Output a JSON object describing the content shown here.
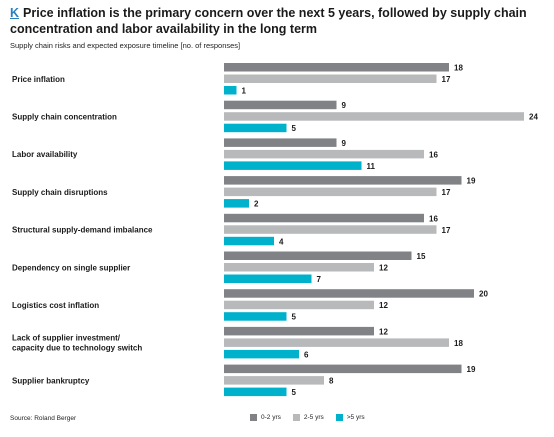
{
  "header": {
    "letter": "K",
    "title": "Price inflation is the primary concern over the next 5 years, followed by supply chain concentration and labor availability in the long term",
    "subtitle": "Supply chain risks and expected exposure timeline [no. of responses]"
  },
  "footer": {
    "source": "Source: Roland Berger"
  },
  "colors": {
    "series_0_2": "#808285",
    "series_2_5": "#b8b9bb",
    "series_5_plus": "#00b1cc",
    "title_letter": "#2a7fbf"
  },
  "chart_data": {
    "type": "bar",
    "orientation": "horizontal",
    "categories": [
      [
        "Price inflation"
      ],
      [
        "Supply chain concentration"
      ],
      [
        "Labor availability"
      ],
      [
        "Supply chain disruptions"
      ],
      [
        "Structural supply-demand imbalance"
      ],
      [
        "Dependency on single supplier"
      ],
      [
        "Logistics cost inflation"
      ],
      [
        "Lack of supplier investment/",
        "capacity due to technology switch"
      ],
      [
        "Supplier bankruptcy"
      ]
    ],
    "series": [
      {
        "name": "0-2 yrs",
        "color": "#808285",
        "values": [
          18,
          9,
          9,
          19,
          16,
          15,
          20,
          12,
          19
        ]
      },
      {
        "name": "2-5 yrs",
        "color": "#b8b9bb",
        "values": [
          17,
          24,
          16,
          17,
          17,
          12,
          12,
          18,
          8
        ]
      },
      {
        "name": ">5 yrs",
        "color": "#00b1cc",
        "values": [
          1,
          5,
          11,
          2,
          4,
          7,
          5,
          6,
          5
        ]
      }
    ],
    "xlim": [
      0,
      24
    ],
    "legend_position": "bottom",
    "grid": false,
    "data_labels": true
  }
}
